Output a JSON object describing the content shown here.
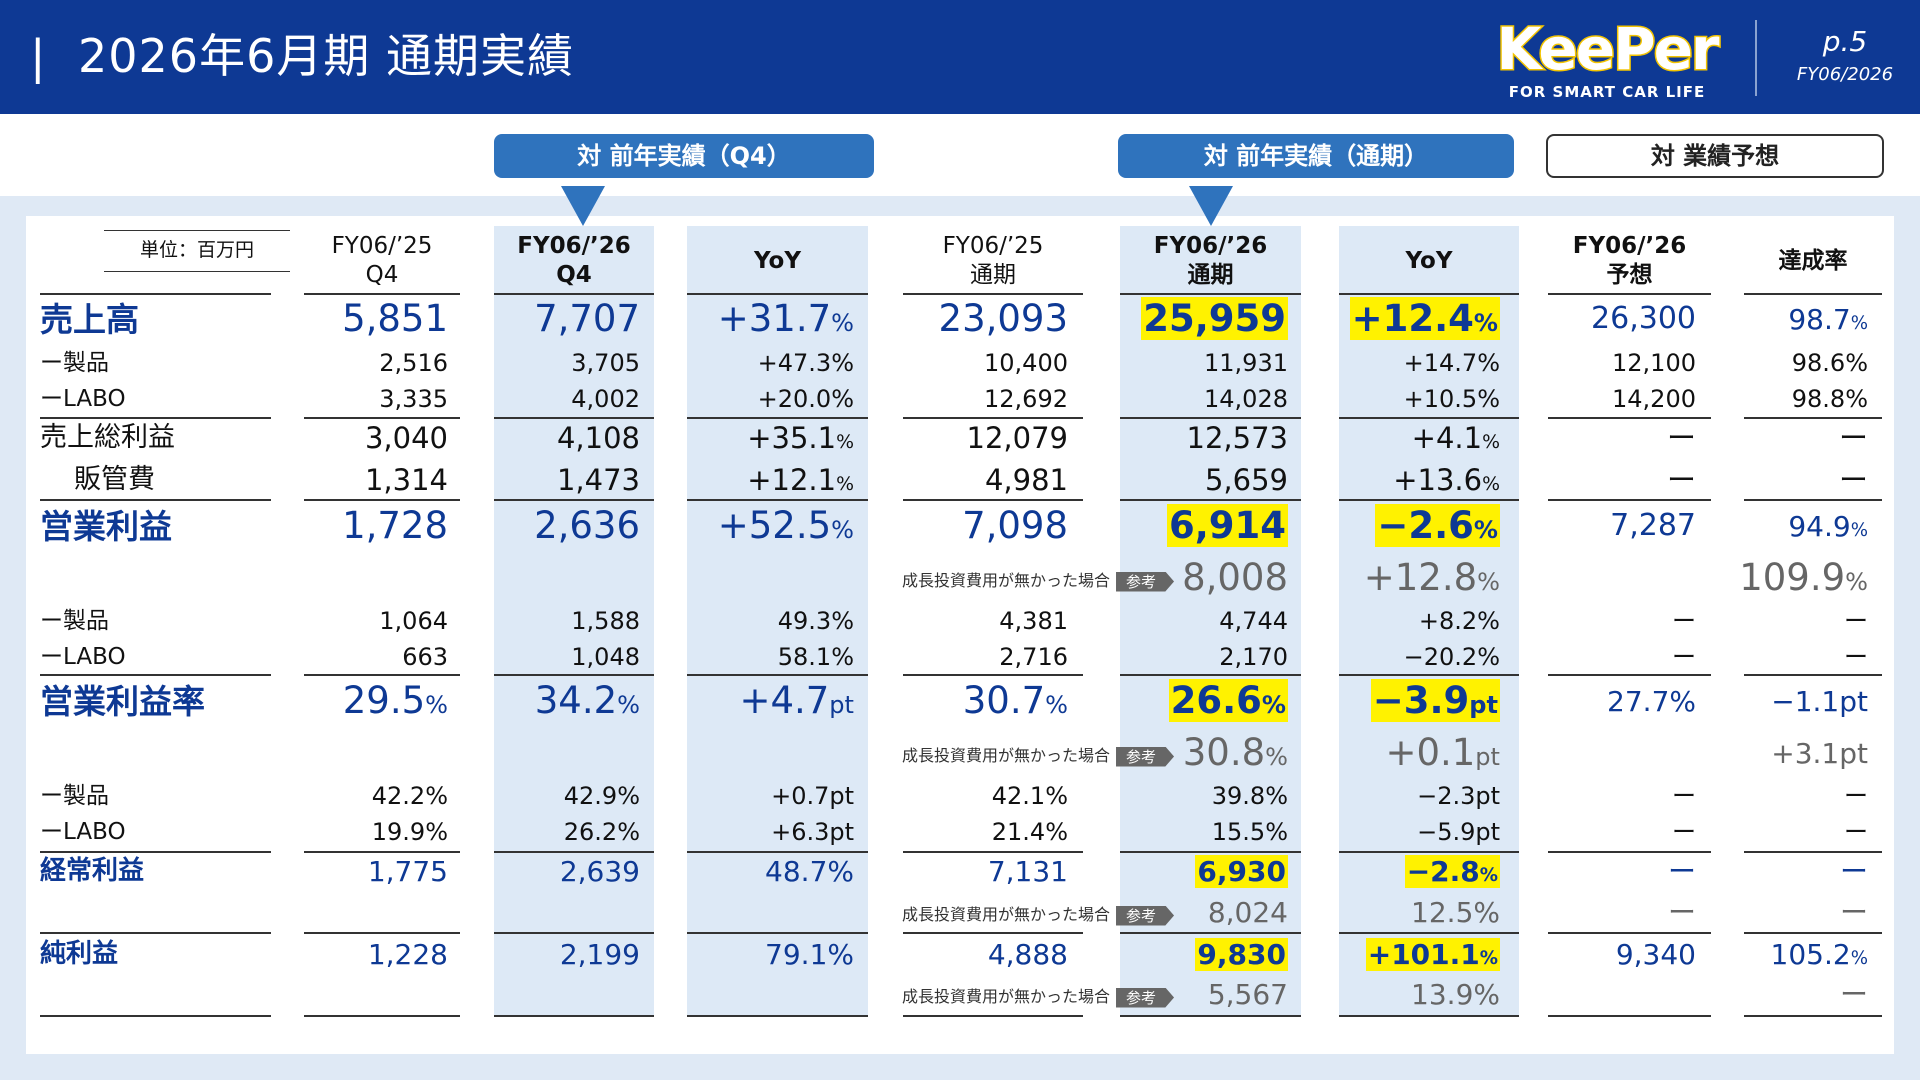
{
  "header": {
    "bar": "|",
    "title": "2026年6月期 通期実績",
    "logo_main": "KeePer",
    "logo_sub": "FOR SMART CAR LIFE",
    "page": "p.5",
    "fiscal_year": "FY06/2026"
  },
  "pills": {
    "q4": "対 前年実績（Q4）",
    "fy": "対 前年実績（通期）",
    "forecast": "対 業績予想"
  },
  "columns": {
    "unit": "単位：百万円",
    "c1": [
      "FY06/’25",
      "Q4"
    ],
    "c2": [
      "FY06/’26",
      "Q4"
    ],
    "c3": "YoY",
    "c4": [
      "FY06/’25",
      "通期"
    ],
    "c5": [
      "FY06/’26",
      "通期"
    ],
    "c6": "YoY",
    "c7": [
      "FY06/’26",
      "予想"
    ],
    "c8": "達成率"
  },
  "note_text": "成長投資費用が無かった場合",
  "note_tag": "参考",
  "rows": {
    "r1": {
      "label": "売上高",
      "c1": "5,851",
      "c2": "7,707",
      "c3": "+31.7",
      "c3u": "%",
      "c4": "23,093",
      "c5": "25,959",
      "c6": "+12.4",
      "c6u": "%",
      "c7": "26,300",
      "c8": "98.7",
      "c8u": "%"
    },
    "r2": {
      "label": "ー製品",
      "c1": "2,516",
      "c2": "3,705",
      "c3": "+47.3%",
      "c4": "10,400",
      "c5": "11,931",
      "c6": "+14.7%",
      "c7": "12,100",
      "c8": "98.6%"
    },
    "r3": {
      "label": "ーLABO",
      "c1": "3,335",
      "c2": "4,002",
      "c3": "+20.0%",
      "c4": "12,692",
      "c5": "14,028",
      "c6": "+10.5%",
      "c7": "14,200",
      "c8": "98.8%"
    },
    "r4": {
      "label": "売上総利益",
      "c1": "3,040",
      "c2": "4,108",
      "c3": "+35.1",
      "c3u": "%",
      "c4": "12,079",
      "c5": "12,573",
      "c6": "+4.1",
      "c6u": "%",
      "c7": "ー",
      "c8": "ー"
    },
    "r5": {
      "label": "販管費",
      "c1": "1,314",
      "c2": "1,473",
      "c3": "+12.1",
      "c3u": "%",
      "c4": "4,981",
      "c5": "5,659",
      "c6": "+13.6",
      "c6u": "%",
      "c7": "ー",
      "c8": "ー"
    },
    "r6": {
      "label": "営業利益",
      "c1": "1,728",
      "c2": "2,636",
      "c3": "+52.5",
      "c3u": "%",
      "c4": "7,098",
      "c5": "6,914",
      "c6": "−2.6",
      "c6u": "%",
      "c7": "7,287",
      "c8": "94.9",
      "c8u": "%"
    },
    "r6n": {
      "c5": "8,008",
      "c6": "+12.8",
      "c6u": "%",
      "c8": "109.9",
      "c8u": "%"
    },
    "r7": {
      "label": "ー製品",
      "c1": "1,064",
      "c2": "1,588",
      "c3": "49.3%",
      "c4": "4,381",
      "c5": "4,744",
      "c6": "+8.2%",
      "c7": "ー",
      "c8": "ー"
    },
    "r8": {
      "label": "ーLABO",
      "c1": "663",
      "c2": "1,048",
      "c3": "58.1%",
      "c4": "2,716",
      "c5": "2,170",
      "c6": "−20.2%",
      "c7": "ー",
      "c8": "ー"
    },
    "r9": {
      "label": "営業利益率",
      "c1": "29.5",
      "c1u": "%",
      "c2": "34.2",
      "c2u": "%",
      "c3": "+4.7",
      "c3u": "pt",
      "c4": "30.7",
      "c4u": "%",
      "c5": "26.6",
      "c5u": "%",
      "c6": "−3.9",
      "c6u": "pt",
      "c7": "27.7%",
      "c8": "−1.1pt"
    },
    "r9n": {
      "c5": "30.8",
      "c5u": "%",
      "c6": "+0.1",
      "c6u": "pt",
      "c8": "+3.1pt"
    },
    "r10": {
      "label": "ー製品",
      "c1": "42.2%",
      "c2": "42.9%",
      "c3": "+0.7pt",
      "c4": "42.1%",
      "c5": "39.8%",
      "c6": "−2.3pt",
      "c7": "ー",
      "c8": "ー"
    },
    "r11": {
      "label": "ーLABO",
      "c1": "19.9%",
      "c2": "26.2%",
      "c3": "+6.3pt",
      "c4": "21.4%",
      "c5": "15.5%",
      "c6": "−5.9pt",
      "c7": "ー",
      "c8": "ー"
    },
    "r12": {
      "label": "経常利益",
      "c1": "1,775",
      "c2": "2,639",
      "c3": "48.7%",
      "c4": "7,131",
      "c5": "6,930",
      "c6": "−2.8",
      "c6u": "%",
      "c7": "ー",
      "c8": "ー"
    },
    "r12n": {
      "c5": "8,024",
      "c6": "12.5%",
      "c7": "ー",
      "c8": "ー"
    },
    "r13": {
      "label": "純利益",
      "c1": "1,228",
      "c2": "2,199",
      "c3": "79.1%",
      "c4": "4,888",
      "c5": "9,830",
      "c6": "+101.1",
      "c6u": "%",
      "c7": "9,340",
      "c8": "105.2",
      "c8u": "%"
    },
    "r13n": {
      "c5": "5,567",
      "c6": "13.9%",
      "c8": "ー"
    }
  }
}
